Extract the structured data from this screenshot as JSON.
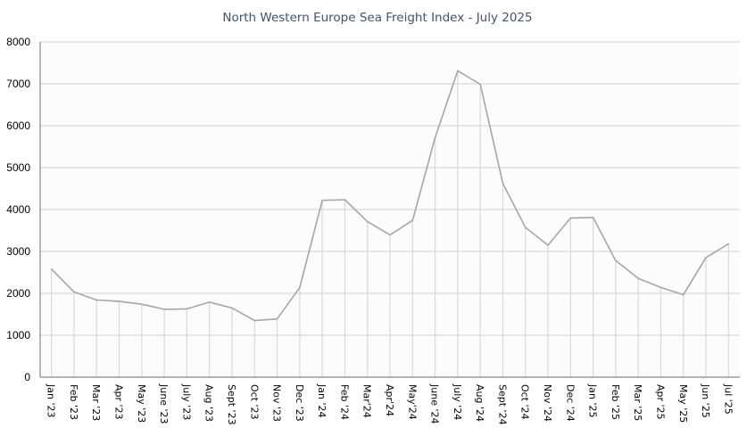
{
  "chart_data": {
    "type": "line",
    "title": "North Western Europe Sea Freight Index - July 2025",
    "xlabel": "",
    "ylabel": "",
    "ylim": [
      0,
      8000
    ],
    "yticks": [
      0,
      1000,
      2000,
      3000,
      4000,
      5000,
      6000,
      7000,
      8000
    ],
    "grid": true,
    "drop_lines": true,
    "legend": "none",
    "categories": [
      "Jan '23",
      "Feb '23",
      "Mar '23",
      "Apr '23",
      "May '23",
      "June '23",
      "July '23",
      "Aug '23",
      "Sept '23",
      "Oct '23",
      "Nov '23",
      "Dec '23",
      "Jan '24",
      "Feb '24",
      "Mar'24",
      "Apr'24",
      "May'24",
      "June '24",
      "July '24",
      "Aug '24",
      "Sept '24",
      "Oct '24",
      "Nov '24",
      "Dec '24",
      "Jan '25",
      "Feb '25",
      "Mar '25",
      "Apr '25",
      "May '25",
      "Jun '25",
      "Jul '25"
    ],
    "series": [
      {
        "name": "Sea Freight Index",
        "color": "#a6a6a6",
        "values": [
          2580,
          2035,
          1840,
          1810,
          1740,
          1620,
          1630,
          1790,
          1650,
          1350,
          1390,
          2135,
          4220,
          4235,
          3710,
          3395,
          3740,
          5720,
          7310,
          6990,
          4620,
          3575,
          3150,
          3795,
          3810,
          2780,
          2355,
          2140,
          1965,
          2855,
          3180
        ]
      }
    ]
  },
  "colors": {
    "title": "#44546a",
    "line": "#a6a6a6",
    "gridline": "#d9d9d9",
    "drop_line": "#d9d9d9",
    "axis": "#868686",
    "plot_background": "#fcfcfc"
  }
}
